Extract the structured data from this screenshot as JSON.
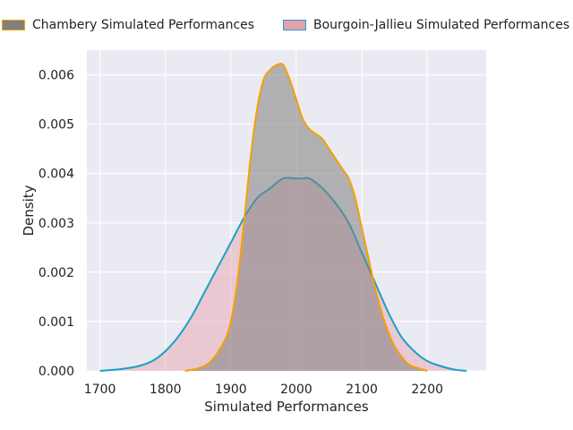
{
  "chart_data": {
    "type": "area",
    "title": "",
    "xlabel": "Simulated Performances",
    "ylabel": "Density",
    "xlim": [
      1680,
      2290
    ],
    "ylim": [
      0,
      0.0065
    ],
    "xticks": [
      1700,
      1800,
      1900,
      2000,
      2100,
      2200
    ],
    "yticks": [
      0.0,
      0.001,
      0.002,
      0.003,
      0.004,
      0.005,
      0.006
    ],
    "ytick_labels": [
      "0.000",
      "0.001",
      "0.002",
      "0.003",
      "0.004",
      "0.005",
      "0.006"
    ],
    "grid": true,
    "legend_position": "top",
    "series": [
      {
        "name": "Chambery Simulated Performances",
        "fill": "#808080",
        "line": "#f5a000",
        "x": [
          1830,
          1850,
          1870,
          1890,
          1900,
          1910,
          1920,
          1930,
          1940,
          1950,
          1960,
          1970,
          1980,
          1990,
          2000,
          2010,
          2020,
          2030,
          2040,
          2050,
          2060,
          2070,
          2080,
          2090,
          2100,
          2110,
          2120,
          2130,
          2140,
          2150,
          2160,
          2170,
          2180,
          2190,
          2200
        ],
        "y": [
          0.0,
          5e-05,
          0.0002,
          0.0006,
          0.001,
          0.0018,
          0.003,
          0.0043,
          0.0053,
          0.0059,
          0.0061,
          0.0062,
          0.0062,
          0.0059,
          0.0055,
          0.0051,
          0.0049,
          0.0048,
          0.0047,
          0.0045,
          0.0043,
          0.0041,
          0.0039,
          0.0035,
          0.0029,
          0.0023,
          0.0017,
          0.0012,
          0.0008,
          0.0005,
          0.0003,
          0.00015,
          8e-05,
          4e-05,
          0.0
        ]
      },
      {
        "name": "Bourgoin-Jallieu Simulated Performances",
        "fill": "#e8a0ab",
        "line": "#1aa0c8",
        "x": [
          1700,
          1720,
          1740,
          1760,
          1780,
          1800,
          1820,
          1840,
          1860,
          1880,
          1900,
          1920,
          1940,
          1960,
          1980,
          2000,
          2010,
          2020,
          2040,
          2060,
          2080,
          2100,
          2120,
          2140,
          2160,
          2180,
          2200,
          2220,
          2240,
          2260
        ],
        "y": [
          0.0,
          2e-05,
          5e-05,
          0.0001,
          0.0002,
          0.0004,
          0.0007,
          0.0011,
          0.0016,
          0.0021,
          0.0026,
          0.0031,
          0.0035,
          0.0037,
          0.0039,
          0.0039,
          0.0039,
          0.0039,
          0.0037,
          0.0034,
          0.003,
          0.0024,
          0.0018,
          0.0012,
          0.0007,
          0.0004,
          0.0002,
          0.0001,
          3e-05,
          0.0
        ]
      }
    ]
  }
}
